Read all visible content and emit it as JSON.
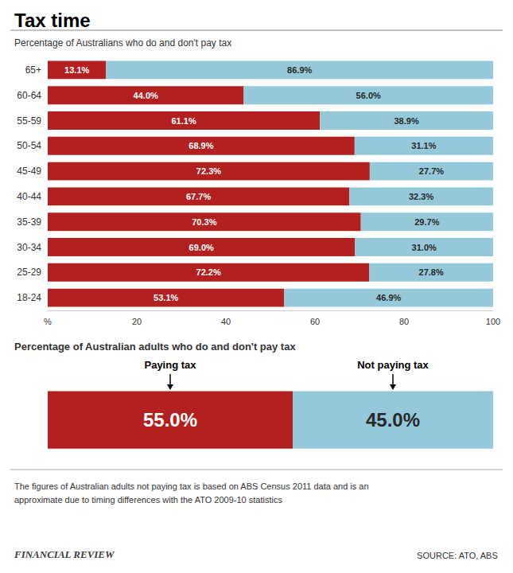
{
  "chart_data": [
    {
      "type": "bar",
      "orientation": "horizontal",
      "stacked": true,
      "title": "Tax time",
      "subtitle": "Percentage of Australians who do and don't pay tax",
      "categories": [
        "65+",
        "60-64",
        "55-59",
        "50-54",
        "45-49",
        "40-44",
        "35-39",
        "30-34",
        "25-29",
        "18-24"
      ],
      "series": [
        {
          "color": "#B22020",
          "values": [
            13.1,
            44.0,
            61.1,
            68.9,
            72.3,
            67.7,
            70.3,
            69.0,
            72.2,
            53.1
          ],
          "value_labels": [
            "13.1%",
            "44.0%",
            "61.1%",
            "68.9%",
            "72.3%",
            "67.7%",
            "70.3%",
            "69.0%",
            "72.2%",
            "53.1%"
          ]
        },
        {
          "color": "#95C8D8",
          "values": [
            86.9,
            56.0,
            38.9,
            31.1,
            27.7,
            32.3,
            29.7,
            31.0,
            27.8,
            46.9
          ],
          "value_labels": [
            "86.9%",
            "56.0%",
            "38.9%",
            "31.1%",
            "27.7%",
            "32.3%",
            "29.7%",
            "31.0%",
            "27.8%",
            "46.9%"
          ]
        }
      ],
      "xlim": [
        0,
        100
      ],
      "xticks": [
        {
          "value": 0,
          "label": "%"
        },
        20,
        40,
        60,
        80,
        100
      ],
      "grid": false,
      "data_labels": true
    },
    {
      "type": "bar",
      "orientation": "horizontal",
      "stacked": true,
      "subtitle": "Percentage of Australian adults who do and don't pay tax",
      "series": [
        {
          "color": "#B22020",
          "values": [
            55.0
          ],
          "value_labels": [
            "55.0%"
          ]
        },
        {
          "color": "#95C8D8",
          "values": [
            45.0
          ],
          "value_labels": [
            "45.0%"
          ]
        }
      ],
      "annotations": [
        "Paying tax",
        "Not paying tax"
      ],
      "xlim": [
        0,
        100
      ],
      "tick_labels": false,
      "data_labels": true
    }
  ],
  "footnote": "The figures of Australian adults not paying tax is based on ABS Census 2011 data and is an\napproximate due to timing differences with the ATO 2009-10 statistics",
  "source": "SOURCE: ATO, ABS",
  "brand": "FINANCIAL REVIEW"
}
